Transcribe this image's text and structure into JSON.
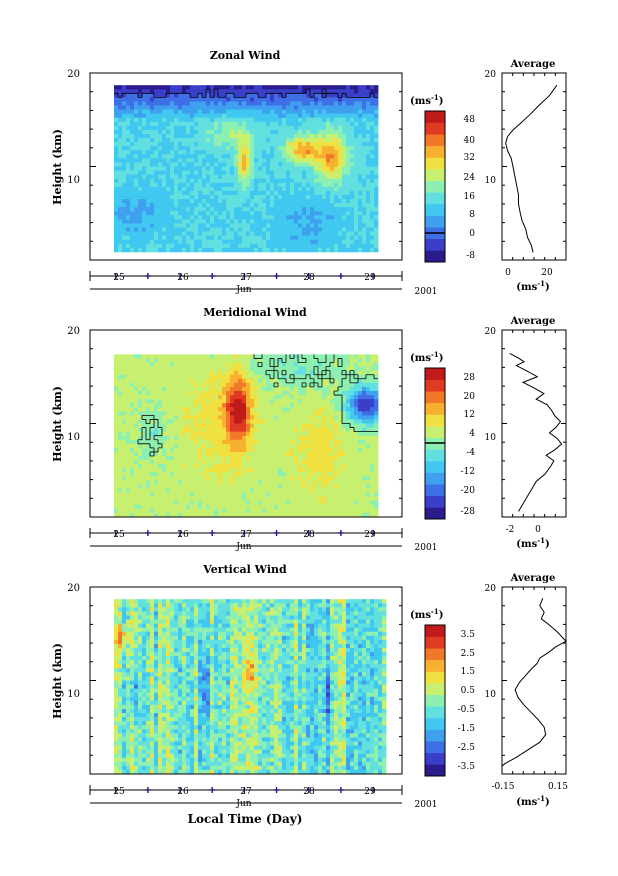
{
  "colors": {
    "palette": [
      "#2a1c8c",
      "#3a3ec8",
      "#3f6fe6",
      "#3fa0f0",
      "#40c8f0",
      "#62e0e0",
      "#8ef0b0",
      "#c8f070",
      "#f0e040",
      "#f8b030",
      "#f07828",
      "#e03a22",
      "#c01a1a"
    ]
  },
  "footer": {
    "xlabel": "Local Time (Day)"
  },
  "panels": [
    {
      "title": "Zonal Wind",
      "ylabel": "Height (km)",
      "yticks": [
        "20",
        "10"
      ],
      "xticks": [
        "25",
        "26",
        "27",
        "28",
        "29"
      ],
      "month": "Jun",
      "year": "2001",
      "colorbar": {
        "unit": "(ms",
        "unit_sup": "-1",
        "unit_close": ")",
        "labels": [
          "48",
          "40",
          "32",
          "24",
          "16",
          "8",
          "0",
          "-8"
        ]
      },
      "profile": {
        "title": "Average",
        "yticks": [
          "20",
          "10"
        ],
        "xticks": [
          "0",
          "20"
        ],
        "xunit": "(ms",
        "xunit_sup": "-1",
        "xunit_close": ")"
      }
    },
    {
      "title": "Meridional Wind",
      "ylabel": "Height (km)",
      "yticks": [
        "20",
        "10"
      ],
      "xticks": [
        "25",
        "26",
        "27",
        "28",
        "29"
      ],
      "month": "Jun",
      "year": "2001",
      "colorbar": {
        "unit": "(ms",
        "unit_sup": "-1",
        "unit_close": ")",
        "labels": [
          "28",
          "20",
          "12",
          "4",
          "-4",
          "-12",
          "-20",
          "-28"
        ]
      },
      "profile": {
        "title": "Average",
        "yticks": [
          "20",
          "10"
        ],
        "xticks": [
          "-2",
          "0"
        ],
        "xunit": "(ms",
        "xunit_sup": "-1",
        "xunit_close": ")"
      }
    },
    {
      "title": "Vertical Wind",
      "ylabel": "Height (km)",
      "yticks": [
        "20",
        "10"
      ],
      "xticks": [
        "25",
        "26",
        "27",
        "28",
        "29"
      ],
      "month": "Jun",
      "year": "2001",
      "colorbar": {
        "unit": "(ms",
        "unit_sup": "-1",
        "unit_close": ")",
        "labels": [
          "3.5",
          "2.5",
          "1.5",
          "0.5",
          "-0.5",
          "-1.5",
          "-2.5",
          "-3.5"
        ]
      },
      "profile": {
        "title": "Average",
        "yticks": [
          "20",
          "10"
        ],
        "xticks": [
          "-0.15",
          "0.15"
        ],
        "xunit": "(ms",
        "xunit_sup": "-1",
        "xunit_close": ")"
      }
    }
  ],
  "chart_data": [
    {
      "type": "heatmap",
      "title": "Zonal Wind",
      "ylabel": "Height (km)",
      "xlabel": "Jun",
      "x_range": [
        24.6,
        29.45
      ],
      "y_range": [
        0,
        20
      ],
      "data_x_range": [
        25.0,
        29.1
      ],
      "data_y_range": [
        1,
        18.5
      ],
      "color_range": [
        -8,
        52
      ],
      "contour_level": 0,
      "field": {
        "background": 15,
        "gradients": [
          {
            "y_from": 15,
            "y_to": 18.5,
            "v_from": 14,
            "v_to": -4
          }
        ],
        "features": [
          {
            "x": 27.0,
            "y": 10.5,
            "sx": 0.08,
            "sy": 1.6,
            "amp": 20
          },
          {
            "x": 27.9,
            "y": 11.8,
            "sx": 0.18,
            "sy": 1.0,
            "amp": 22
          },
          {
            "x": 28.35,
            "y": 11.0,
            "sx": 0.18,
            "sy": 1.8,
            "amp": 22
          },
          {
            "x": 26.8,
            "y": 13.5,
            "sx": 0.3,
            "sy": 1.2,
            "amp": 8
          },
          {
            "x": 25.3,
            "y": 5.0,
            "sx": 0.35,
            "sy": 1.5,
            "amp": -6
          },
          {
            "x": 28.0,
            "y": 4.0,
            "sx": 0.35,
            "sy": 2.0,
            "amp": -5
          }
        ],
        "noise": 4,
        "seed": 7
      }
    },
    {
      "type": "heatmap",
      "title": "Meridional Wind",
      "ylabel": "Height (km)",
      "xlabel": "Jun",
      "x_range": [
        24.6,
        29.45
      ],
      "y_range": [
        0,
        20
      ],
      "data_x_range": [
        25.0,
        29.1
      ],
      "data_y_range": [
        0.2,
        17.6
      ],
      "color_range": [
        -32,
        32
      ],
      "contour_level": 0,
      "field": {
        "background": 4,
        "gradients": [],
        "features": [
          {
            "x": 26.9,
            "y": 11.5,
            "sx": 0.13,
            "sy": 2.5,
            "amp": 24
          },
          {
            "x": 26.6,
            "y": 10.0,
            "sx": 0.4,
            "sy": 4.0,
            "amp": 6
          },
          {
            "x": 28.9,
            "y": 12.0,
            "sx": 0.22,
            "sy": 1.4,
            "amp": -30
          },
          {
            "x": 28.2,
            "y": 7.0,
            "sx": 0.3,
            "sy": 3.0,
            "amp": 6
          },
          {
            "x": 25.6,
            "y": 9.0,
            "sx": 0.2,
            "sy": 2.0,
            "amp": -5
          },
          {
            "x": 27.8,
            "y": 16.0,
            "sx": 0.6,
            "sy": 1.5,
            "amp": -6
          }
        ],
        "noise": 5,
        "seed": 13
      }
    },
    {
      "type": "heatmap",
      "title": "Vertical Wind",
      "ylabel": "Height (km)",
      "xlabel": "Local Time (Day)",
      "x_range": [
        24.6,
        29.45
      ],
      "y_range": [
        0,
        20
      ],
      "data_x_range": [
        25.0,
        29.2
      ],
      "data_y_range": [
        0.2,
        18.8
      ],
      "color_range": [
        -4,
        4
      ],
      "contour_level": null,
      "field": {
        "background": -0.3,
        "gradients": [],
        "features": [
          {
            "x": 25.1,
            "y": 14.5,
            "sx": 0.06,
            "sy": 1.0,
            "amp": 2.4
          },
          {
            "x": 27.1,
            "y": 11.0,
            "sx": 0.05,
            "sy": 1.5,
            "amp": 1.6
          },
          {
            "x": 25.3,
            "y": 8.0,
            "sx": 0.04,
            "sy": 2.0,
            "amp": -2.0
          },
          {
            "x": 26.4,
            "y": 9.0,
            "sx": 0.05,
            "sy": 2.5,
            "amp": -1.8
          },
          {
            "x": 28.3,
            "y": 8.0,
            "sx": 0.05,
            "sy": 2.0,
            "amp": -1.6
          }
        ],
        "noise": 1.6,
        "streak": true,
        "seed": 21
      }
    }
  ],
  "profiles": [
    {
      "title": "Average",
      "x_range": [
        -4,
        31
      ],
      "y_range": [
        0,
        20
      ],
      "points": [
        [
          26,
          18.7
        ],
        [
          22,
          17.6
        ],
        [
          16,
          16.5
        ],
        [
          11,
          15.5
        ],
        [
          6,
          14.6
        ],
        [
          2,
          13.9
        ],
        [
          -1,
          13.2
        ],
        [
          -2,
          12.5
        ],
        [
          -1,
          11.7
        ],
        [
          1,
          10.9
        ],
        [
          2,
          10.0
        ],
        [
          3,
          9.0
        ],
        [
          4,
          8.0
        ],
        [
          5,
          7.0
        ],
        [
          5,
          6.0
        ],
        [
          6,
          5.0
        ],
        [
          7,
          4.2
        ],
        [
          9,
          3.3
        ],
        [
          10,
          2.4
        ],
        [
          12,
          1.6
        ],
        [
          13,
          0.8
        ]
      ]
    },
    {
      "title": "Average",
      "x_range": [
        -3.5,
        2.3
      ],
      "y_range": [
        0,
        20
      ],
      "points": [
        [
          -2.8,
          17.5
        ],
        [
          -2.0,
          17.0
        ],
        [
          -1.5,
          16.6
        ],
        [
          -2.2,
          16.2
        ],
        [
          -1.2,
          15.6
        ],
        [
          -0.3,
          15.0
        ],
        [
          -1.6,
          14.4
        ],
        [
          -0.6,
          13.8
        ],
        [
          0.3,
          13.2
        ],
        [
          -0.4,
          12.6
        ],
        [
          0.6,
          12.0
        ],
        [
          1.0,
          11.4
        ],
        [
          1.3,
          10.8
        ],
        [
          1.8,
          10.2
        ],
        [
          1.4,
          9.6
        ],
        [
          0.8,
          9.0
        ],
        [
          1.5,
          8.4
        ],
        [
          1.9,
          7.8
        ],
        [
          1.3,
          7.2
        ],
        [
          0.5,
          6.6
        ],
        [
          1.2,
          6.0
        ],
        [
          0.9,
          5.4
        ],
        [
          0.4,
          4.6
        ],
        [
          -0.4,
          3.8
        ],
        [
          -0.8,
          3.0
        ],
        [
          -1.2,
          2.2
        ],
        [
          -1.6,
          1.4
        ],
        [
          -2.0,
          0.6
        ]
      ]
    },
    {
      "title": "Average",
      "x_range": [
        -0.22,
        0.22
      ],
      "y_range": [
        0,
        20
      ],
      "points": [
        [
          0.06,
          18.8
        ],
        [
          0.04,
          18.0
        ],
        [
          0.07,
          17.3
        ],
        [
          0.05,
          16.6
        ],
        [
          0.1,
          16.0
        ],
        [
          0.16,
          15.2
        ],
        [
          0.22,
          14.2
        ],
        [
          0.15,
          13.6
        ],
        [
          0.1,
          13.0
        ],
        [
          0.04,
          12.4
        ],
        [
          0.02,
          11.8
        ],
        [
          -0.02,
          11.2
        ],
        [
          -0.06,
          10.5
        ],
        [
          -0.1,
          9.8
        ],
        [
          -0.13,
          9.0
        ],
        [
          -0.11,
          8.2
        ],
        [
          -0.07,
          7.4
        ],
        [
          -0.02,
          6.6
        ],
        [
          0.03,
          5.8
        ],
        [
          0.07,
          5.0
        ],
        [
          0.08,
          4.2
        ],
        [
          0.04,
          3.4
        ],
        [
          -0.04,
          2.6
        ],
        [
          -0.12,
          1.8
        ],
        [
          -0.2,
          1.1
        ],
        [
          -0.24,
          0.6
        ]
      ]
    }
  ]
}
